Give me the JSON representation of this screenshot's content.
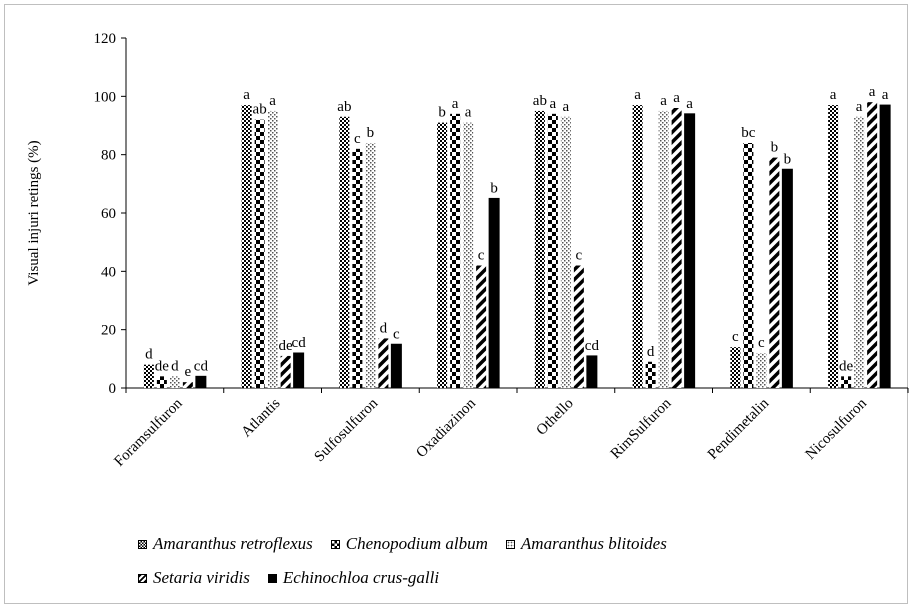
{
  "chart_data": {
    "type": "bar",
    "title": "",
    "xlabel": "",
    "ylabel": "Visual injuri retings (%)",
    "ylim": [
      0,
      120
    ],
    "yticks": [
      0,
      20,
      40,
      60,
      80,
      100,
      120
    ],
    "grid": false,
    "legend_position": "bottom",
    "categories": [
      "Foramsulfuron",
      "Atlantis",
      "Sulfosulfuron",
      "Oxadiazinon",
      "Othello",
      "RimSulfuron",
      "Pendimetalin",
      "Nicosulfuron"
    ],
    "series": [
      {
        "name": "Amaranthus retroflexus",
        "pattern": "checker",
        "values": [
          8,
          97,
          93,
          91,
          95,
          97,
          14,
          97
        ],
        "labels": [
          "d",
          "a",
          "ab",
          "b",
          "ab",
          "a",
          "c",
          "a"
        ]
      },
      {
        "name": "Chenopodium  album",
        "pattern": "bigchecker",
        "values": [
          4,
          92,
          82,
          94,
          94,
          9,
          84,
          4
        ],
        "labels": [
          "de",
          "ab",
          "c",
          "a",
          "a",
          "d",
          "bc",
          "de"
        ]
      },
      {
        "name": "Amaranthus blitoides",
        "pattern": "dots",
        "values": [
          4,
          95,
          84,
          91,
          93,
          95,
          12,
          93
        ],
        "labels": [
          "d",
          "a",
          "b",
          "a",
          "a",
          "a",
          "c",
          "a"
        ]
      },
      {
        "name": "Setaria viridis",
        "pattern": "diagonal",
        "values": [
          2,
          11,
          17,
          42,
          42,
          96,
          79,
          98
        ],
        "labels": [
          "e",
          "de",
          "d",
          "c",
          "c",
          "a",
          "b",
          "a"
        ]
      },
      {
        "name": "Echinochloa crus-galli",
        "pattern": "solid",
        "values": [
          4,
          12,
          15,
          65,
          11,
          94,
          75,
          97
        ],
        "labels": [
          "cd",
          "cd",
          "c",
          "b",
          "cd",
          "a",
          "b",
          "a"
        ]
      }
    ]
  }
}
